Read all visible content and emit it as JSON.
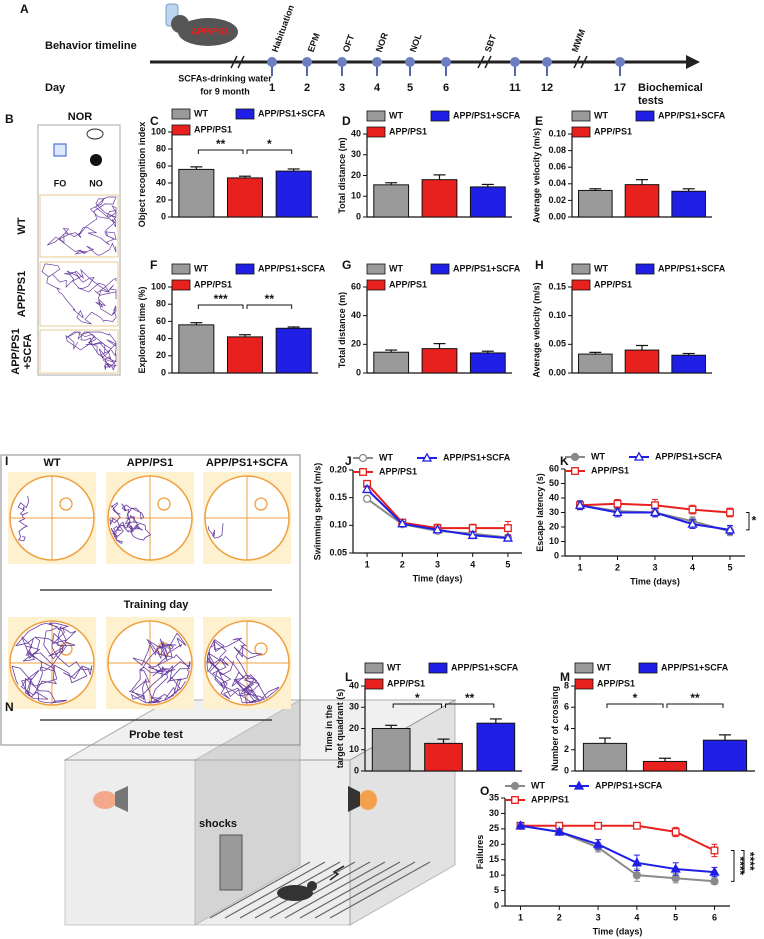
{
  "timeline": {
    "label": "A",
    "row_label": "Behavior timeline",
    "day_label": "Day",
    "mouse_label": "APP/PS1",
    "treatment": [
      "SCFAs-drinking water",
      "for 9 month"
    ],
    "days": [
      "1",
      "2",
      "3",
      "4",
      "5",
      "6",
      "11",
      "12",
      "17"
    ],
    "events": [
      "Habituation",
      "EPM",
      "OFT",
      "NOR",
      "NOL",
      "SBT",
      "MWM"
    ],
    "end": [
      "Biochemical",
      "tests"
    ]
  },
  "nor": {
    "label": "B",
    "title": "NOR",
    "objects": [
      "FO",
      "NO"
    ],
    "groups": [
      [
        "WT"
      ],
      [
        "APP/PS1"
      ],
      [
        "APP/PS1",
        "+SCFA"
      ]
    ]
  },
  "maze": {
    "label": "I",
    "groups": [
      "WT",
      "APP/PS1",
      "APP/PS1+SCFA"
    ],
    "sessions": [
      "Training day",
      "Probe test"
    ]
  },
  "shock": {
    "label": "N",
    "text": "shocks"
  },
  "chart_data": [
    {
      "label": "C",
      "type": "bar",
      "y_label": "Object recognition index",
      "categories": [
        "WT",
        "APP/PS1",
        "APP/PS1+SCFA"
      ],
      "colors": [
        "#9a9a9a",
        "#e8201e",
        "#1f1fe6"
      ],
      "values": [
        56,
        46,
        54
      ],
      "errors": [
        3,
        2,
        2.5
      ],
      "ylim": [
        0,
        100
      ],
      "yticks": [
        0,
        20,
        40,
        60,
        80,
        100
      ],
      "significance": [
        {
          "pair": [
            "WT",
            "APP/PS1"
          ],
          "label": "**"
        },
        {
          "pair": [
            "APP/PS1",
            "APP/PS1+SCFA"
          ],
          "label": "*"
        }
      ]
    },
    {
      "label": "D",
      "type": "bar",
      "y_label": "Total distance (m)",
      "categories": [
        "WT",
        "APP/PS1",
        "APP/PS1+SCFA"
      ],
      "colors": [
        "#9a9a9a",
        "#e8201e",
        "#1f1fe6"
      ],
      "values": [
        15.5,
        18,
        14.5
      ],
      "errors": [
        1,
        2.3,
        1.2
      ],
      "ylim": [
        0,
        40
      ],
      "yticks": [
        0,
        10,
        20,
        30,
        40
      ],
      "significance": []
    },
    {
      "label": "E",
      "type": "bar",
      "y_label": "Average velocity (m/s)",
      "categories": [
        "WT",
        "APP/PS1",
        "APP/PS1+SCFA"
      ],
      "colors": [
        "#9a9a9a",
        "#e8201e",
        "#1f1fe6"
      ],
      "values": [
        0.032,
        0.039,
        0.031
      ],
      "errors": [
        0.002,
        0.006,
        0.003
      ],
      "ylim": [
        0,
        0.1
      ],
      "yticks": [
        {
          "value": 0,
          "label": "0.00"
        },
        0.02,
        0.04,
        0.06,
        0.08,
        {
          "value": 0.1,
          "label": "0.10"
        }
      ],
      "significance": []
    },
    {
      "label": "F",
      "type": "bar",
      "y_label": "Exploration time (%)",
      "categories": [
        "WT",
        "APP/PS1",
        "APP/PS1+SCFA"
      ],
      "colors": [
        "#9a9a9a",
        "#e8201e",
        "#1f1fe6"
      ],
      "values": [
        56,
        42,
        52
      ],
      "errors": [
        2.5,
        2.5,
        1.5
      ],
      "ylim": [
        0,
        100
      ],
      "yticks": [
        0,
        20,
        40,
        60,
        80,
        100
      ],
      "significance": [
        {
          "pair": [
            "WT",
            "APP/PS1"
          ],
          "label": "***"
        },
        {
          "pair": [
            "APP/PS1",
            "APP/PS1+SCFA"
          ],
          "label": "**"
        }
      ]
    },
    {
      "label": "G",
      "type": "bar",
      "y_label": "Total distance (m)",
      "categories": [
        "WT",
        "APP/PS1",
        "APP/PS1+SCFA"
      ],
      "colors": [
        "#9a9a9a",
        "#e8201e",
        "#1f1fe6"
      ],
      "values": [
        14.5,
        17,
        14
      ],
      "errors": [
        1.5,
        3.5,
        1.2
      ],
      "ylim": [
        0,
        60
      ],
      "yticks": [
        0,
        20,
        40,
        60
      ],
      "significance": []
    },
    {
      "label": "H",
      "type": "bar",
      "y_label": "Average velocity (m/s)",
      "categories": [
        "WT",
        "APP/PS1",
        "APP/PS1+SCFA"
      ],
      "colors": [
        "#9a9a9a",
        "#e8201e",
        "#1f1fe6"
      ],
      "values": [
        0.033,
        0.04,
        0.031
      ],
      "errors": [
        0.003,
        0.008,
        0.003
      ],
      "ylim": [
        0,
        0.15
      ],
      "yticks": [
        {
          "value": 0,
          "label": "0.00"
        },
        0.05,
        {
          "value": 0.1,
          "label": "0.10"
        },
        0.15
      ],
      "significance": []
    },
    {
      "label": "J",
      "type": "line",
      "y_label": "Swimming speed (m/s)",
      "x_label": "Time (days)",
      "x": [
        1,
        2,
        3,
        4,
        5
      ],
      "xlim": [
        0.6,
        5.4
      ],
      "xticks": [
        1,
        2,
        3,
        4,
        5
      ],
      "ylim": [
        0.05,
        0.2
      ],
      "yticks": [
        0.05,
        {
          "value": 0.1,
          "label": "0.10"
        },
        0.15,
        {
          "value": 0.2,
          "label": "0.20"
        }
      ],
      "series": [
        {
          "name": "WT",
          "color": "#8a8a8a",
          "marker": "circle",
          "filled": false,
          "values": [
            0.148,
            0.102,
            0.09,
            0.085,
            0.078
          ],
          "errors": [
            0.005,
            0.004,
            0.005,
            0.006,
            0.004
          ]
        },
        {
          "name": "APP/PS1",
          "color": "#e8201e",
          "marker": "square",
          "filled": false,
          "values": [
            0.175,
            0.105,
            0.095,
            0.095,
            0.095
          ],
          "errors": [
            0.005,
            0.005,
            0.007,
            0.007,
            0.012
          ]
        },
        {
          "name": "APP/PS1+SCFA",
          "color": "#1f1fe6",
          "marker": "triangle",
          "filled": false,
          "values": [
            0.165,
            0.103,
            0.092,
            0.082,
            0.077
          ],
          "errors": [
            0.006,
            0.004,
            0.005,
            0.006,
            0.004
          ]
        }
      ],
      "significance": []
    },
    {
      "label": "K",
      "type": "line",
      "y_label": "Escape latency (s)",
      "x_label": "Time (days)",
      "x": [
        1,
        2,
        3,
        4,
        5
      ],
      "xlim": [
        0.6,
        5.4
      ],
      "xticks": [
        1,
        2,
        3,
        4,
        5
      ],
      "ylim": [
        0,
        60
      ],
      "yticks": [
        0,
        10,
        20,
        30,
        40,
        50,
        60
      ],
      "series": [
        {
          "name": "WT",
          "color": "#8a8a8a",
          "marker": "circle",
          "filled": true,
          "values": [
            35,
            31,
            30,
            24,
            17
          ],
          "errors": [
            3,
            3,
            3,
            3,
            3
          ]
        },
        {
          "name": "APP/PS1",
          "color": "#e8201e",
          "marker": "square",
          "filled": false,
          "values": [
            35,
            36,
            35,
            32,
            30
          ],
          "errors": [
            3,
            3,
            4,
            3,
            3
          ]
        },
        {
          "name": "APP/PS1+SCFA",
          "color": "#1f1fe6",
          "marker": "triangle",
          "filled": false,
          "values": [
            35,
            30,
            30,
            22,
            18
          ],
          "errors": [
            3,
            3,
            3,
            3,
            3
          ]
        }
      ],
      "significance": [
        {
          "pair": [
            "APP/PS1",
            "APP/PS1+SCFA"
          ],
          "label": "*"
        }
      ]
    },
    {
      "label": "L",
      "type": "bar",
      "y_label": [
        "Time in the",
        "target quadrant (s)"
      ],
      "categories": [
        "WT",
        "APP/PS1",
        "APP/PS1+SCFA"
      ],
      "colors": [
        "#9a9a9a",
        "#e8201e",
        "#1f1fe6"
      ],
      "values": [
        20,
        13,
        22.5
      ],
      "errors": [
        1.5,
        2,
        2
      ],
      "ylim": [
        0,
        40
      ],
      "yticks": [
        0,
        10,
        20,
        30,
        40
      ],
      "significance": [
        {
          "pair": [
            "WT",
            "APP/PS1"
          ],
          "label": "*"
        },
        {
          "pair": [
            "APP/PS1",
            "APP/PS1+SCFA"
          ],
          "label": "**"
        }
      ]
    },
    {
      "label": "M",
      "type": "bar",
      "y_label": "Number of crossing",
      "categories": [
        "WT",
        "APP/PS1",
        "APP/PS1+SCFA"
      ],
      "colors": [
        "#9a9a9a",
        "#e8201e",
        "#1f1fe6"
      ],
      "values": [
        2.6,
        0.9,
        2.9
      ],
      "errors": [
        0.5,
        0.3,
        0.5
      ],
      "ylim": [
        0,
        8
      ],
      "yticks": [
        0,
        2,
        4,
        6,
        8
      ],
      "significance": [
        {
          "pair": [
            "WT",
            "APP/PS1"
          ],
          "label": "*"
        },
        {
          "pair": [
            "APP/PS1",
            "APP/PS1+SCFA"
          ],
          "label": "**"
        }
      ]
    },
    {
      "label": "O",
      "type": "line",
      "y_label": "Failures",
      "x_label": "Time (days)",
      "x": [
        1,
        2,
        3,
        4,
        5,
        6
      ],
      "xlim": [
        0.6,
        6.4
      ],
      "xticks": [
        1,
        2,
        3,
        4,
        5,
        6
      ],
      "ylim": [
        0,
        35
      ],
      "yticks": [
        0,
        5,
        10,
        15,
        20,
        25,
        30,
        35
      ],
      "series": [
        {
          "name": "WT",
          "color": "#8a8a8a",
          "marker": "circle",
          "filled": true,
          "values": [
            26,
            24,
            19,
            10,
            9,
            8
          ],
          "errors": [
            1,
            1,
            1.5,
            2,
            1.5,
            1
          ]
        },
        {
          "name": "APP/PS1",
          "color": "#e8201e",
          "marker": "square",
          "filled": false,
          "values": [
            26,
            26,
            26,
            26,
            24,
            18
          ],
          "errors": [
            1,
            1,
            1,
            1,
            1.5,
            2
          ]
        },
        {
          "name": "APP/PS1+SCFA",
          "color": "#1f1fe6",
          "marker": "triangle",
          "filled": true,
          "values": [
            26,
            24,
            20,
            14,
            12,
            11
          ],
          "errors": [
            1,
            1,
            1.5,
            2.5,
            2,
            1.5
          ]
        }
      ],
      "significance": [
        {
          "pair": [
            "APP/PS1",
            "WT"
          ],
          "label": "****"
        },
        {
          "pair": [
            "APP/PS1",
            "APP/PS1+SCFA"
          ],
          "label": "****"
        }
      ]
    }
  ]
}
